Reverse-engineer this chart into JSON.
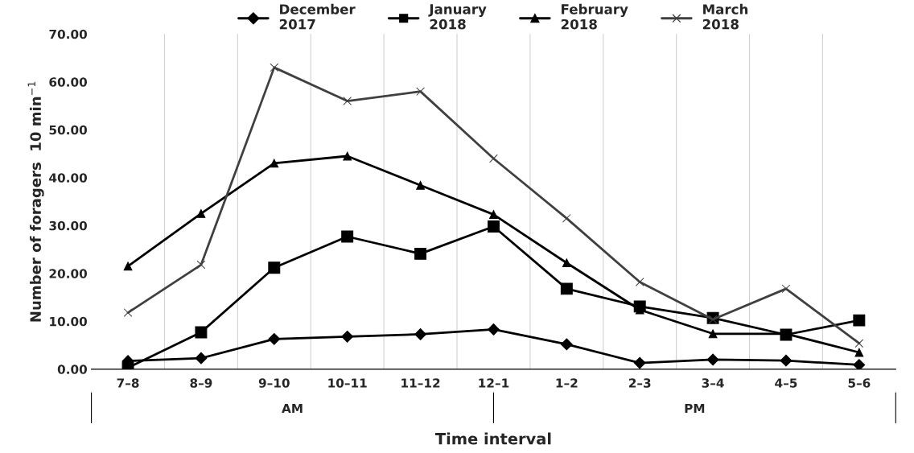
{
  "chart_data": {
    "type": "line",
    "xlabel": "Time interval",
    "ylabel": "Number of foragers  10 min$^{−1}$",
    "categories": [
      "7–8",
      "8–9",
      "9–10",
      "10–11",
      "11–12",
      "12–1",
      "1–2",
      "2–3",
      "3–4",
      "4–5",
      "5–6"
    ],
    "series": [
      {
        "name": "December\n2017",
        "color": "#000000",
        "marker": "diamond",
        "values": [
          1.7,
          2.3,
          6.3,
          6.8,
          7.3,
          8.3,
          5.2,
          1.3,
          2.0,
          1.8,
          0.9
        ]
      },
      {
        "name": "January\n2018",
        "color": "#000000",
        "marker": "square",
        "values": [
          0.3,
          7.7,
          21.2,
          27.7,
          24.1,
          29.8,
          16.8,
          13.1,
          10.7,
          7.2,
          10.2
        ]
      },
      {
        "name": "February\n2018",
        "color": "#000000",
        "marker": "triangle",
        "values": [
          21.5,
          32.5,
          43.0,
          44.5,
          38.4,
          32.3,
          22.2,
          12.4,
          7.4,
          7.4,
          3.5
        ]
      },
      {
        "name": "March\n2018",
        "color": "#404040",
        "marker": "cross",
        "values": [
          11.8,
          21.8,
          63.0,
          56.0,
          58.0,
          44.0,
          31.5,
          18.2,
          10.4,
          16.8,
          5.4
        ]
      }
    ],
    "ylim": [
      0,
      70
    ],
    "yticks": [
      {
        "value": 0,
        "label": "0.00"
      },
      {
        "value": 10,
        "label": "10.00"
      },
      {
        "value": 20,
        "label": "20.00"
      },
      {
        "value": 30,
        "label": "30.00"
      },
      {
        "value": 40,
        "label": "40.00"
      },
      {
        "value": 50,
        "label": "50.00"
      },
      {
        "value": 60,
        "label": "60.00"
      },
      {
        "value": 70,
        "label": "70.00"
      }
    ],
    "grid": "x",
    "legend": "top",
    "annotations": [
      "AM",
      "PM"
    ]
  }
}
